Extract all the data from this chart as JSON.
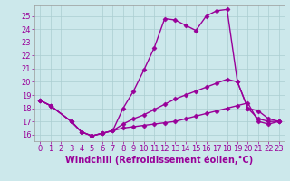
{
  "background_color": "#cce8eb",
  "grid_color": "#aacdd1",
  "line_color": "#990099",
  "marker": "D",
  "markersize": 2.5,
  "linewidth": 1.0,
  "xlabel": "Windchill (Refroidissement éolien,°C)",
  "xlabel_fontsize": 7,
  "xlim": [
    -0.5,
    23.5
  ],
  "ylim": [
    15.5,
    25.8
  ],
  "xticks": [
    0,
    1,
    2,
    3,
    4,
    5,
    6,
    7,
    8,
    9,
    10,
    11,
    12,
    13,
    14,
    15,
    16,
    17,
    18,
    19,
    20,
    21,
    22,
    23
  ],
  "yticks": [
    16,
    17,
    18,
    19,
    20,
    21,
    22,
    23,
    24,
    25
  ],
  "tick_fontsize": 6,
  "series1_x": [
    0,
    1,
    3,
    4,
    5,
    6,
    7,
    8,
    9,
    10,
    11,
    12,
    13,
    14,
    15,
    16,
    17,
    18,
    19,
    20,
    21,
    22,
    23
  ],
  "series1_y": [
    18.6,
    18.2,
    17.0,
    16.2,
    15.9,
    16.1,
    16.3,
    18.0,
    19.3,
    20.9,
    22.6,
    24.8,
    24.7,
    24.3,
    23.9,
    25.0,
    25.4,
    25.5,
    20.0,
    18.0,
    17.8,
    17.2,
    17.0
  ],
  "series2_x": [
    0,
    1,
    3,
    4,
    5,
    6,
    7,
    8,
    9,
    10,
    11,
    12,
    13,
    14,
    15,
    16,
    17,
    18,
    19,
    20,
    21,
    22,
    23
  ],
  "series2_y": [
    18.6,
    18.2,
    17.0,
    16.2,
    15.9,
    16.1,
    16.3,
    16.8,
    17.2,
    17.5,
    17.9,
    18.3,
    18.7,
    19.0,
    19.3,
    19.6,
    19.9,
    20.2,
    20.0,
    18.0,
    17.2,
    17.0,
    17.0
  ],
  "series3_x": [
    0,
    1,
    3,
    4,
    5,
    6,
    7,
    8,
    9,
    10,
    11,
    12,
    13,
    14,
    15,
    16,
    17,
    18,
    19,
    20,
    21,
    22,
    23
  ],
  "series3_y": [
    18.6,
    18.2,
    17.0,
    16.2,
    15.9,
    16.1,
    16.3,
    16.5,
    16.6,
    16.7,
    16.8,
    16.9,
    17.0,
    17.2,
    17.4,
    17.6,
    17.8,
    18.0,
    18.2,
    18.4,
    17.0,
    16.8,
    17.0
  ]
}
